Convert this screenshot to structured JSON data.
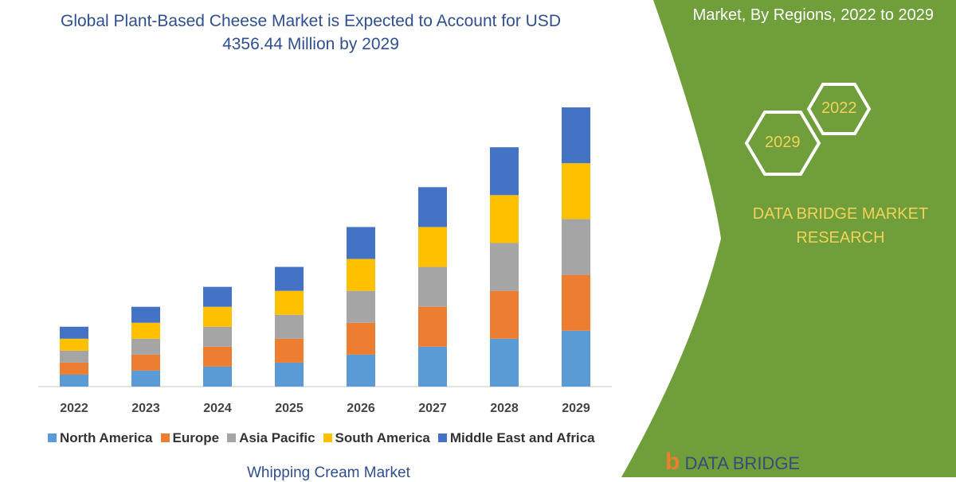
{
  "title": "Global Plant-Based Cheese Market is Expected to Account for USD 4356.44 Million by 2029",
  "side_panel": {
    "title": "Market, By Regions, 2022 to 2029",
    "hex_badges": [
      "2022",
      "2029"
    ],
    "brand": "DATA BRIDGE MARKET RESEARCH",
    "logo_text": "DATA BRIDGE",
    "panel_color": "#6f9e3a",
    "accent_color": "#f2d25a"
  },
  "subtitle_bottom": "Whipping Cream Market",
  "chart_data": {
    "type": "bar",
    "stacked": true,
    "title": "",
    "xlabel": "",
    "ylabel": "",
    "y_axis_shown": false,
    "grid": false,
    "legend_placement": "bottom",
    "categories": [
      "2022",
      "2023",
      "2024",
      "2025",
      "2026",
      "2027",
      "2028",
      "2029"
    ],
    "series": [
      {
        "name": "North America",
        "color": "#5b9bd5",
        "values": [
          15,
          20,
          25,
          30,
          40,
          50,
          60,
          70
        ]
      },
      {
        "name": "Europe",
        "color": "#ed7d31",
        "values": [
          15,
          20,
          25,
          30,
          40,
          50,
          60,
          70
        ]
      },
      {
        "name": "Asia Pacific",
        "color": "#a5a5a5",
        "values": [
          15,
          20,
          25,
          30,
          40,
          50,
          60,
          70
        ]
      },
      {
        "name": "South America",
        "color": "#ffc000",
        "values": [
          15,
          20,
          25,
          30,
          40,
          50,
          60,
          70
        ]
      },
      {
        "name": "Middle East and Africa",
        "color": "#4472c4",
        "values": [
          15,
          20,
          25,
          30,
          40,
          50,
          60,
          70
        ]
      }
    ]
  }
}
